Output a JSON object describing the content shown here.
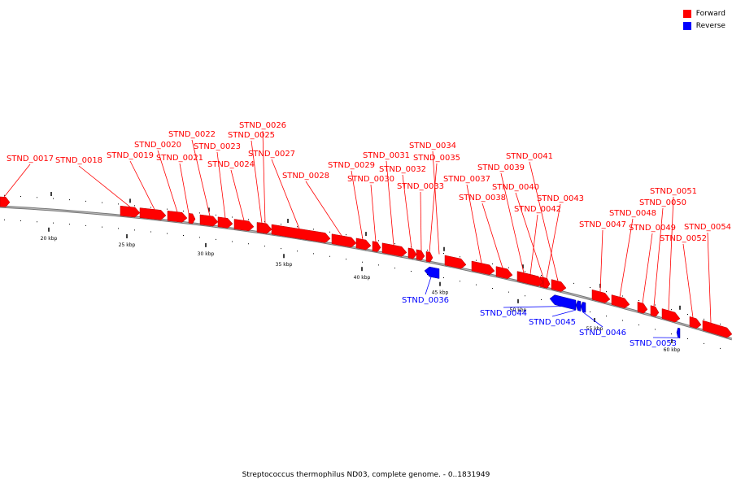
{
  "legend": {
    "forward_label": "Forward",
    "reverse_label": "Reverse",
    "forward_color": "#ff0000",
    "reverse_color": "#0000ff"
  },
  "caption": "Streptococcus thermophilus ND03, complete genome. - 0..1831949",
  "ticks": {
    "kbp_labels": [
      "20 kbp",
      "25 kbp",
      "30 kbp",
      "35 kbp",
      "40 kbp",
      "45 kbp",
      "50 kbp",
      "55 kbp",
      "60 kbp"
    ]
  },
  "genes": [
    {
      "name": "STND_0017",
      "strand": "forward"
    },
    {
      "name": "STND_0018",
      "strand": "forward"
    },
    {
      "name": "STND_0019",
      "strand": "forward"
    },
    {
      "name": "STND_0020",
      "strand": "forward"
    },
    {
      "name": "STND_0021",
      "strand": "forward"
    },
    {
      "name": "STND_0022",
      "strand": "forward"
    },
    {
      "name": "STND_0023",
      "strand": "forward"
    },
    {
      "name": "STND_0024",
      "strand": "forward"
    },
    {
      "name": "STND_0025",
      "strand": "forward"
    },
    {
      "name": "STND_0026",
      "strand": "forward"
    },
    {
      "name": "STND_0027",
      "strand": "forward"
    },
    {
      "name": "STND_0028",
      "strand": "forward"
    },
    {
      "name": "STND_0029",
      "strand": "forward"
    },
    {
      "name": "STND_0030",
      "strand": "forward"
    },
    {
      "name": "STND_0031",
      "strand": "forward"
    },
    {
      "name": "STND_0032",
      "strand": "forward"
    },
    {
      "name": "STND_0033",
      "strand": "forward"
    },
    {
      "name": "STND_0034",
      "strand": "forward"
    },
    {
      "name": "STND_0035",
      "strand": "forward"
    },
    {
      "name": "STND_0036",
      "strand": "reverse"
    },
    {
      "name": "STND_0037",
      "strand": "forward"
    },
    {
      "name": "STND_0038",
      "strand": "forward"
    },
    {
      "name": "STND_0039",
      "strand": "forward"
    },
    {
      "name": "STND_0040",
      "strand": "forward"
    },
    {
      "name": "STND_0041",
      "strand": "forward"
    },
    {
      "name": "STND_0042",
      "strand": "forward"
    },
    {
      "name": "STND_0043",
      "strand": "forward"
    },
    {
      "name": "STND_0044",
      "strand": "reverse"
    },
    {
      "name": "STND_0045",
      "strand": "reverse"
    },
    {
      "name": "STND_0046",
      "strand": "reverse"
    },
    {
      "name": "STND_0047",
      "strand": "forward"
    },
    {
      "name": "STND_0048",
      "strand": "forward"
    },
    {
      "name": "STND_0049",
      "strand": "forward"
    },
    {
      "name": "STND_0050",
      "strand": "forward"
    },
    {
      "name": "STND_0051",
      "strand": "forward"
    },
    {
      "name": "STND_0052",
      "strand": "forward"
    },
    {
      "name": "STND_0053",
      "strand": "reverse"
    },
    {
      "name": "STND_0054",
      "strand": "forward"
    }
  ]
}
